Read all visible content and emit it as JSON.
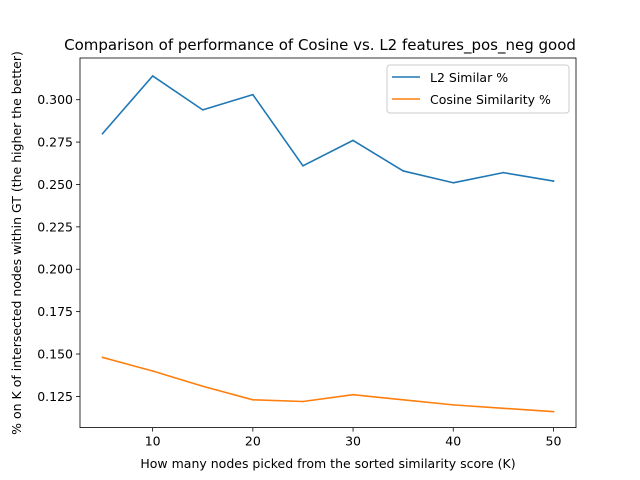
{
  "chart_data": {
    "type": "line",
    "title": "Comparison of performance of Cosine vs. L2 features_pos_neg good",
    "xlabel": "How many nodes picked from the sorted similarity score (K)",
    "ylabel": "% on K of intersected nodes within GT (the higher the better)",
    "x": [
      5,
      10,
      15,
      20,
      25,
      30,
      35,
      40,
      45,
      50
    ],
    "xticks": [
      10,
      20,
      30,
      40,
      50
    ],
    "yticks": [
      0.125,
      0.15,
      0.175,
      0.2,
      0.225,
      0.25,
      0.275,
      0.3
    ],
    "ytick_labels": [
      "0.125",
      "0.150",
      "0.175",
      "0.200",
      "0.225",
      "0.250",
      "0.275",
      "0.300"
    ],
    "xlim": [
      2.75,
      52.25
    ],
    "ylim": [
      0.1066,
      0.3246
    ],
    "grid": false,
    "legend_position": "upper right",
    "series": [
      {
        "name": "L2 Similar %",
        "color": "#1f77b4",
        "values": [
          0.28,
          0.314,
          0.294,
          0.303,
          0.261,
          0.276,
          0.258,
          0.251,
          0.257,
          0.252
        ]
      },
      {
        "name": "Cosine Similarity %",
        "color": "#ff7f0e",
        "values": [
          0.148,
          0.14,
          0.131,
          0.123,
          0.122,
          0.126,
          0.123,
          0.12,
          0.118,
          0.116
        ]
      }
    ]
  }
}
